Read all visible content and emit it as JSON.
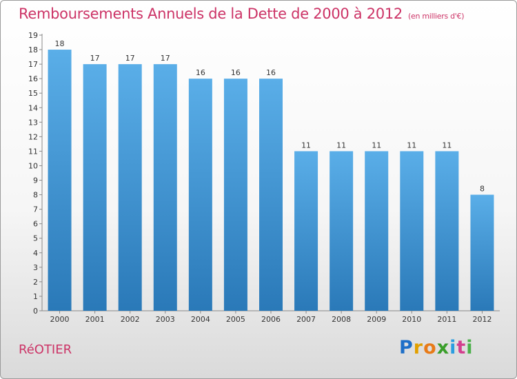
{
  "header": {
    "title": "Remboursements Annuels de la Dette de 2000 à 2012",
    "unit": "(en milliers d'€)"
  },
  "footer": {
    "commune": "RéOTIER",
    "brand": "Proxiti",
    "brand_letters": [
      "P",
      "r",
      "o",
      "x",
      "i",
      "t",
      "i"
    ]
  },
  "colors": {
    "title": "#cc3366",
    "bar_top": "#5aaee8",
    "bar_bottom": "#2a79b8",
    "axis": "#888888",
    "grid": "#dddddd"
  },
  "chart_data": {
    "type": "bar",
    "title": "Remboursements Annuels de la Dette de 2000 à 2012",
    "xlabel": "",
    "ylabel": "",
    "categories": [
      "2000",
      "2001",
      "2002",
      "2003",
      "2004",
      "2005",
      "2006",
      "2007",
      "2008",
      "2009",
      "2010",
      "2011",
      "2012"
    ],
    "values": [
      18,
      17,
      17,
      17,
      16,
      16,
      16,
      11,
      11,
      11,
      11,
      11,
      8
    ],
    "data_labels": [
      "18",
      "17",
      "17",
      "17",
      "16",
      "16",
      "16",
      "11",
      "11",
      "11",
      "11",
      "11",
      "8"
    ],
    "ylim": [
      0,
      19
    ],
    "yticks": [
      0,
      1,
      2,
      3,
      4,
      5,
      6,
      7,
      8,
      9,
      10,
      11,
      12,
      13,
      14,
      15,
      16,
      17,
      18,
      19
    ],
    "grid": false,
    "legend": "none"
  }
}
